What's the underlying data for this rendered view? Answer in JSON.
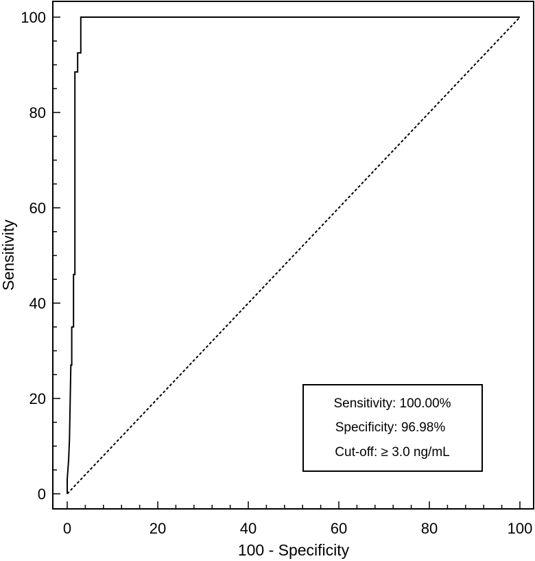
{
  "chart_data": {
    "type": "line",
    "xlabel": "100 - Specificity",
    "ylabel": "Sensitivity",
    "xlim": [
      0,
      100
    ],
    "ylim": [
      0,
      100
    ],
    "x_ticks": [
      0,
      20,
      40,
      60,
      80,
      100
    ],
    "y_ticks": [
      0,
      20,
      40,
      60,
      80,
      100
    ],
    "grid": false,
    "series": [
      {
        "style": "solid",
        "color": "#000000",
        "points": [
          [
            0,
            0
          ],
          [
            0,
            3
          ],
          [
            0.3,
            7
          ],
          [
            0.5,
            11.5
          ],
          [
            0.8,
            27
          ],
          [
            1.0,
            27
          ],
          [
            1.0,
            35
          ],
          [
            1.4,
            35
          ],
          [
            1.4,
            46
          ],
          [
            1.7,
            46
          ],
          [
            1.7,
            88.5
          ],
          [
            2.3,
            88.5
          ],
          [
            2.3,
            92.5
          ],
          [
            3.0,
            92.5
          ],
          [
            3.0,
            100
          ],
          [
            100,
            100
          ]
        ]
      },
      {
        "style": "dashed",
        "color": "#000000",
        "points": [
          [
            0,
            0
          ],
          [
            100,
            100
          ]
        ]
      }
    ],
    "annotation": {
      "lines": [
        "Sensitivity: 100.00%",
        "Specificity: 96.98%",
        "Cut-off: ≥ 3.0 ng/mL"
      ],
      "placement": "bottom-right"
    }
  }
}
